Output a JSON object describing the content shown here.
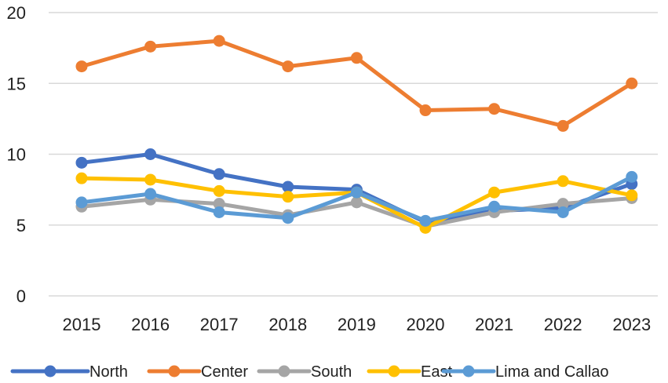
{
  "chart_data": {
    "type": "line",
    "title": "",
    "xlabel": "",
    "ylabel": "",
    "categories": [
      "2015",
      "2016",
      "2017",
      "2018",
      "2019",
      "2020",
      "2021",
      "2022",
      "2023"
    ],
    "ylim": [
      0,
      20
    ],
    "yticks": [
      "0",
      "5",
      "10",
      "15",
      "20"
    ],
    "grid": true,
    "legend_position": "bottom",
    "series": [
      {
        "name": "North",
        "color": "#4472C4",
        "values": [
          9.4,
          10.0,
          8.6,
          7.7,
          7.5,
          5.2,
          6.0,
          6.2,
          7.9
        ]
      },
      {
        "name": "Center",
        "color": "#ED7D31",
        "values": [
          16.2,
          17.6,
          18.0,
          16.2,
          16.8,
          13.1,
          13.2,
          12.0,
          15.0
        ]
      },
      {
        "name": "South",
        "color": "#A5A5A5",
        "values": [
          6.3,
          6.8,
          6.5,
          5.7,
          6.6,
          4.9,
          5.9,
          6.5,
          6.9
        ]
      },
      {
        "name": "East",
        "color": "#FFC000",
        "values": [
          8.3,
          8.2,
          7.4,
          7.0,
          7.3,
          4.8,
          7.3,
          8.1,
          7.1
        ]
      },
      {
        "name": "Lima and Callao",
        "color": "#5B9BD5",
        "values": [
          6.6,
          7.2,
          5.9,
          5.5,
          7.3,
          5.3,
          6.3,
          5.9,
          8.4
        ]
      }
    ]
  }
}
